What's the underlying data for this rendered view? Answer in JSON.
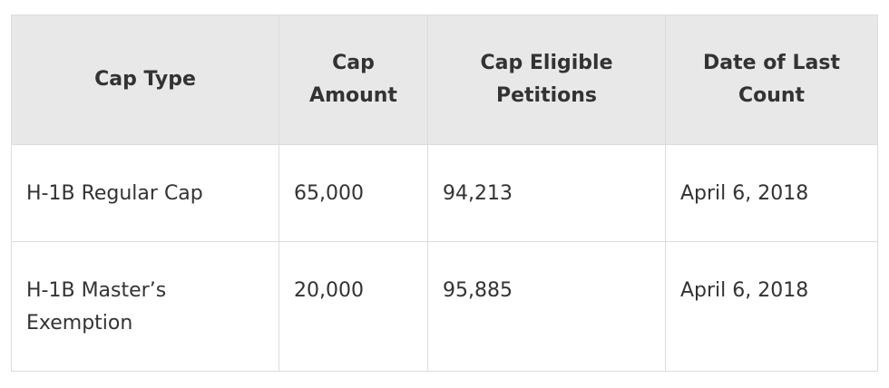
{
  "table": {
    "header": [
      "Cap Type",
      "Cap Amount",
      "Cap Eligible Petitions",
      "Date of Last Count"
    ],
    "rows": [
      [
        "H-1B Regular Cap",
        "65,000",
        "94,213",
        "April 6, 2018"
      ],
      [
        "H-1B Master’s Exemption",
        "20,000",
        "95,885",
        "April 6, 2018"
      ]
    ]
  }
}
